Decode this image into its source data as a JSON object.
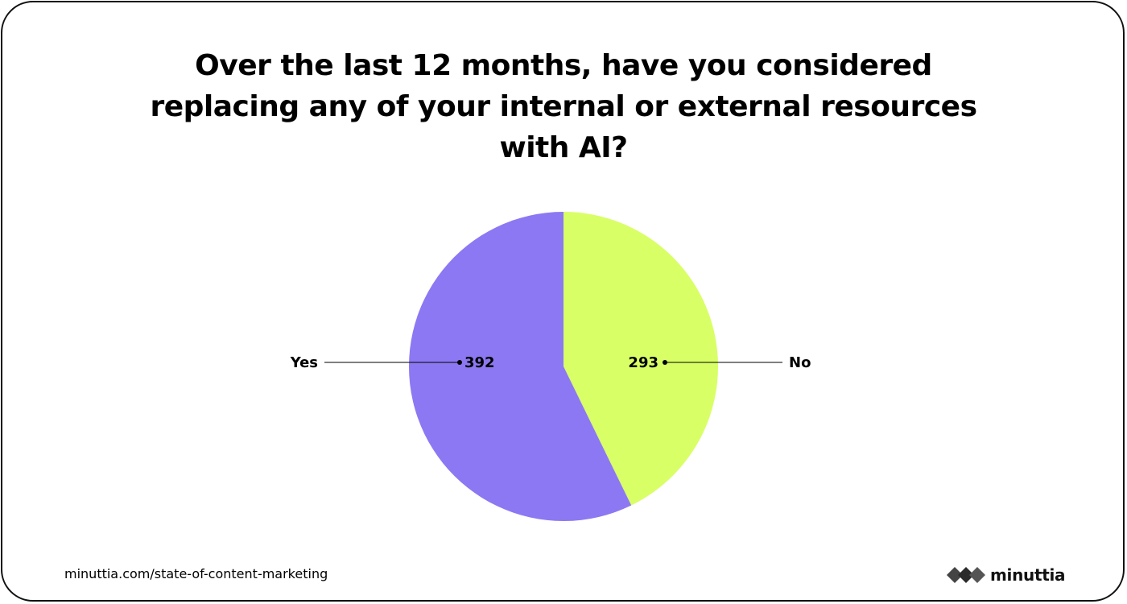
{
  "chart_data": {
    "type": "pie",
    "title": "Over the last 12 months, have you considered replacing any of your internal or external resources with AI?",
    "slices": [
      {
        "label": "No",
        "value": 293,
        "color": "#d8ff66"
      },
      {
        "label": "Yes",
        "value": 392,
        "color": "#8c78f2"
      }
    ],
    "start_angle": "12 o'clock, clockwise",
    "legend": "none"
  },
  "footer": {
    "source_url": "minuttia.com/state-of-content-marketing",
    "brand_name": "minuttia",
    "brand_logo_icon": "diamond-cluster-logo-icon"
  },
  "colors": {
    "text": "#000000",
    "border": "#111111",
    "leader_line": "#000000"
  }
}
